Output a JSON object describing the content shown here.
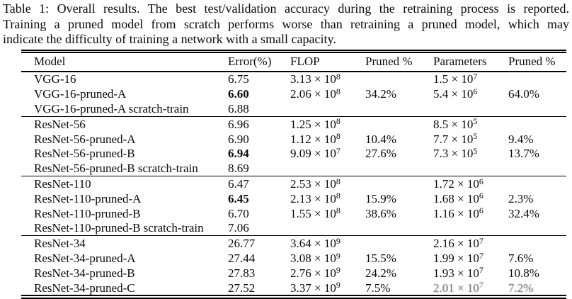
{
  "caption": {
    "lines": [
      "Table 1: Overall results. The best test/validation accuracy during the retraining process is reported.",
      "Training a pruned model from scratch performs worse than retraining a pruned model, which may",
      "indicate the difficulty of training a network with a small capacity."
    ]
  },
  "table": {
    "columns": [
      "Model",
      "Error(%)",
      "FLOP",
      "Pruned %",
      "Parameters",
      "Pruned %"
    ],
    "sections": [
      {
        "rows": [
          {
            "model": "VGG-16",
            "error": "6.75",
            "error_bold": false,
            "flop": "3.13 × 10^8",
            "flop_pruned": "",
            "params": "1.5 × 10^7",
            "params_pruned": "",
            "degraded": false
          },
          {
            "model": "VGG-16-pruned-A",
            "error": "6.60",
            "error_bold": true,
            "flop": "2.06 × 10^8",
            "flop_pruned": "34.2%",
            "params": "5.4 × 10^6",
            "params_pruned": "64.0%",
            "degraded": false
          },
          {
            "model": "VGG-16-pruned-A scratch-train",
            "error": "6.88",
            "error_bold": false,
            "flop": "",
            "flop_pruned": "",
            "params": "",
            "params_pruned": "",
            "degraded": false
          }
        ]
      },
      {
        "rows": [
          {
            "model": "ResNet-56",
            "error": "6.96",
            "error_bold": false,
            "flop": "1.25 × 10^8",
            "flop_pruned": "",
            "params": "8.5 × 10^5",
            "params_pruned": "",
            "degraded": false
          },
          {
            "model": "ResNet-56-pruned-A",
            "error": "6.90",
            "error_bold": false,
            "flop": "1.12 × 10^8",
            "flop_pruned": "10.4%",
            "params": "7.7 × 10^5",
            "params_pruned": "9.4%",
            "degraded": false
          },
          {
            "model": "ResNet-56-pruned-B",
            "error": "6.94",
            "error_bold": true,
            "flop": "9.09 × 10^7",
            "flop_pruned": "27.6%",
            "params": "7.3 × 10^5",
            "params_pruned": "13.7%",
            "degraded": false
          },
          {
            "model": "ResNet-56-pruned-B scratch-train",
            "error": "8.69",
            "error_bold": false,
            "flop": "",
            "flop_pruned": "",
            "params": "",
            "params_pruned": "",
            "degraded": false
          }
        ]
      },
      {
        "rows": [
          {
            "model": "ResNet-110",
            "error": "6.47",
            "error_bold": false,
            "flop": "2.53 × 10^8",
            "flop_pruned": "",
            "params": "1.72 × 10^6",
            "params_pruned": "",
            "degraded": false
          },
          {
            "model": "ResNet-110-pruned-A",
            "error": "6.45",
            "error_bold": true,
            "flop": "2.13 × 10^8",
            "flop_pruned": "15.9%",
            "params": "1.68 × 10^6",
            "params_pruned": "2.3%",
            "degraded": false
          },
          {
            "model": "ResNet-110-pruned-B",
            "error": "6.70",
            "error_bold": false,
            "flop": "1.55 × 10^8",
            "flop_pruned": "38.6%",
            "params": "1.16 × 10^6",
            "params_pruned": "32.4%",
            "degraded": false
          },
          {
            "model": "ResNet-110-pruned-B scratch-train",
            "error": "7.06",
            "error_bold": false,
            "flop": "",
            "flop_pruned": "",
            "params": "",
            "params_pruned": "",
            "degraded": false
          }
        ]
      },
      {
        "rows": [
          {
            "model": "ResNet-34",
            "error": "26.77",
            "error_bold": false,
            "flop": "3.64 × 10^9",
            "flop_pruned": "",
            "params": "2.16 × 10^7",
            "params_pruned": "",
            "degraded": false
          },
          {
            "model": "ResNet-34-pruned-A",
            "error": "27.44",
            "error_bold": false,
            "flop": "3.08 × 10^9",
            "flop_pruned": "15.5%",
            "params": "1.99 × 10^7",
            "params_pruned": "7.6%",
            "degraded": false
          },
          {
            "model": "ResNet-34-pruned-B",
            "error": "27.83",
            "error_bold": false,
            "flop": "2.76 × 10^9",
            "flop_pruned": "24.2%",
            "params": "1.93 × 10^7",
            "params_pruned": "10.8%",
            "degraded": false
          },
          {
            "model": "ResNet-34-pruned-C",
            "error": "27.52",
            "error_bold": false,
            "flop": "3.37 × 10^9",
            "flop_pruned": "7.5%",
            "params": "2.01 × 10^7",
            "params_pruned": "7.2%",
            "degraded": true
          }
        ]
      }
    ]
  },
  "colors": {
    "text": "#0a0a0a",
    "rule": "#000000",
    "background": "#ffffff"
  }
}
